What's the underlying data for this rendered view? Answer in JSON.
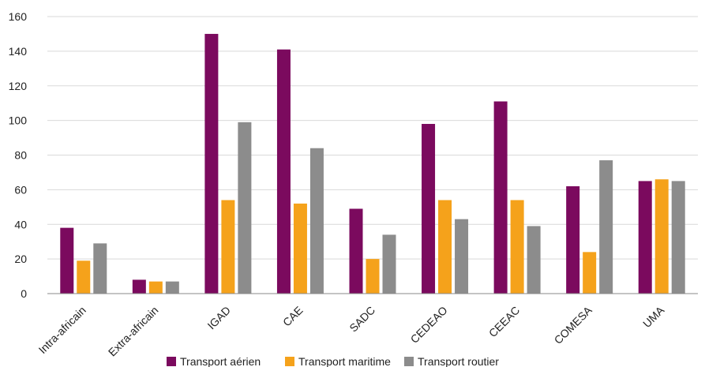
{
  "chart_data": {
    "type": "bar",
    "title": "",
    "xlabel": "",
    "ylabel": "",
    "ylim": [
      0,
      160
    ],
    "yticks": [
      "0",
      "20",
      "40",
      "60",
      "80",
      "100",
      "120",
      "140",
      "160"
    ],
    "grid": true,
    "legend_position": "bottom",
    "categories": [
      "Intra-africain",
      "Extra-africain",
      "IGAD",
      "CAE",
      "SADC",
      "CEDEAO",
      "CEEAC",
      "COMESA",
      "UMA"
    ],
    "series": [
      {
        "name": "Transport aérien",
        "color": "#7b0a5e",
        "values": [
          38,
          8,
          150,
          141,
          49,
          98,
          111,
          62,
          65
        ]
      },
      {
        "name": "Transport maritime",
        "color": "#f5a21b",
        "values": [
          19,
          7,
          54,
          52,
          20,
          54,
          54,
          24,
          66
        ]
      },
      {
        "name": "Transport routier",
        "color": "#8c8c8c",
        "values": [
          29,
          7,
          99,
          84,
          34,
          43,
          39,
          77,
          65
        ]
      }
    ]
  }
}
